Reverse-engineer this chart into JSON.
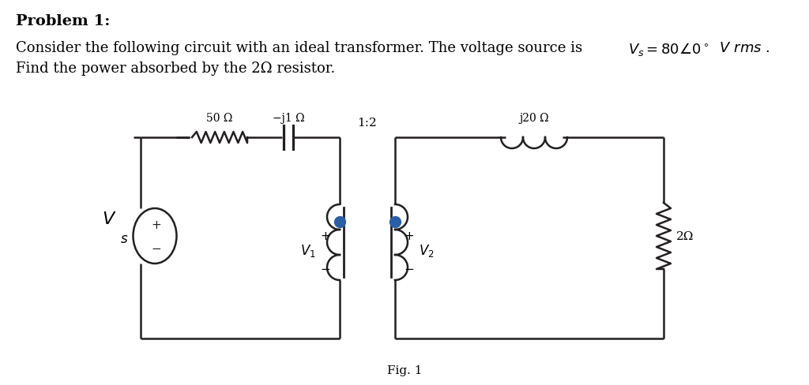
{
  "title_text": "Problem 1:",
  "line1_plain": "Consider the following circuit with an ideal transformer. The voltage source is ",
  "line1_math": "$V_s = 80 \\angle 0^\\circ$ $V$ $rms$ .",
  "line2": "Find the power absorbed by the 2Ω resistor.",
  "fig_label": "Fig. 1",
  "bg_color": "#ffffff",
  "circuit_color": "#231f20",
  "dot_color": "#2a5fa5",
  "label_50": "50 Ω",
  "label_j1": "−j1 Ω",
  "label_12": "1:2",
  "label_j20": "j20 Ω",
  "label_2": "2Ω",
  "label_V1": "$V_1$",
  "label_V2": "$V_2$",
  "label_Vs_italic": "$V$",
  "label_Vs_sub": "$_s$",
  "plus": "+",
  "minus": "−"
}
